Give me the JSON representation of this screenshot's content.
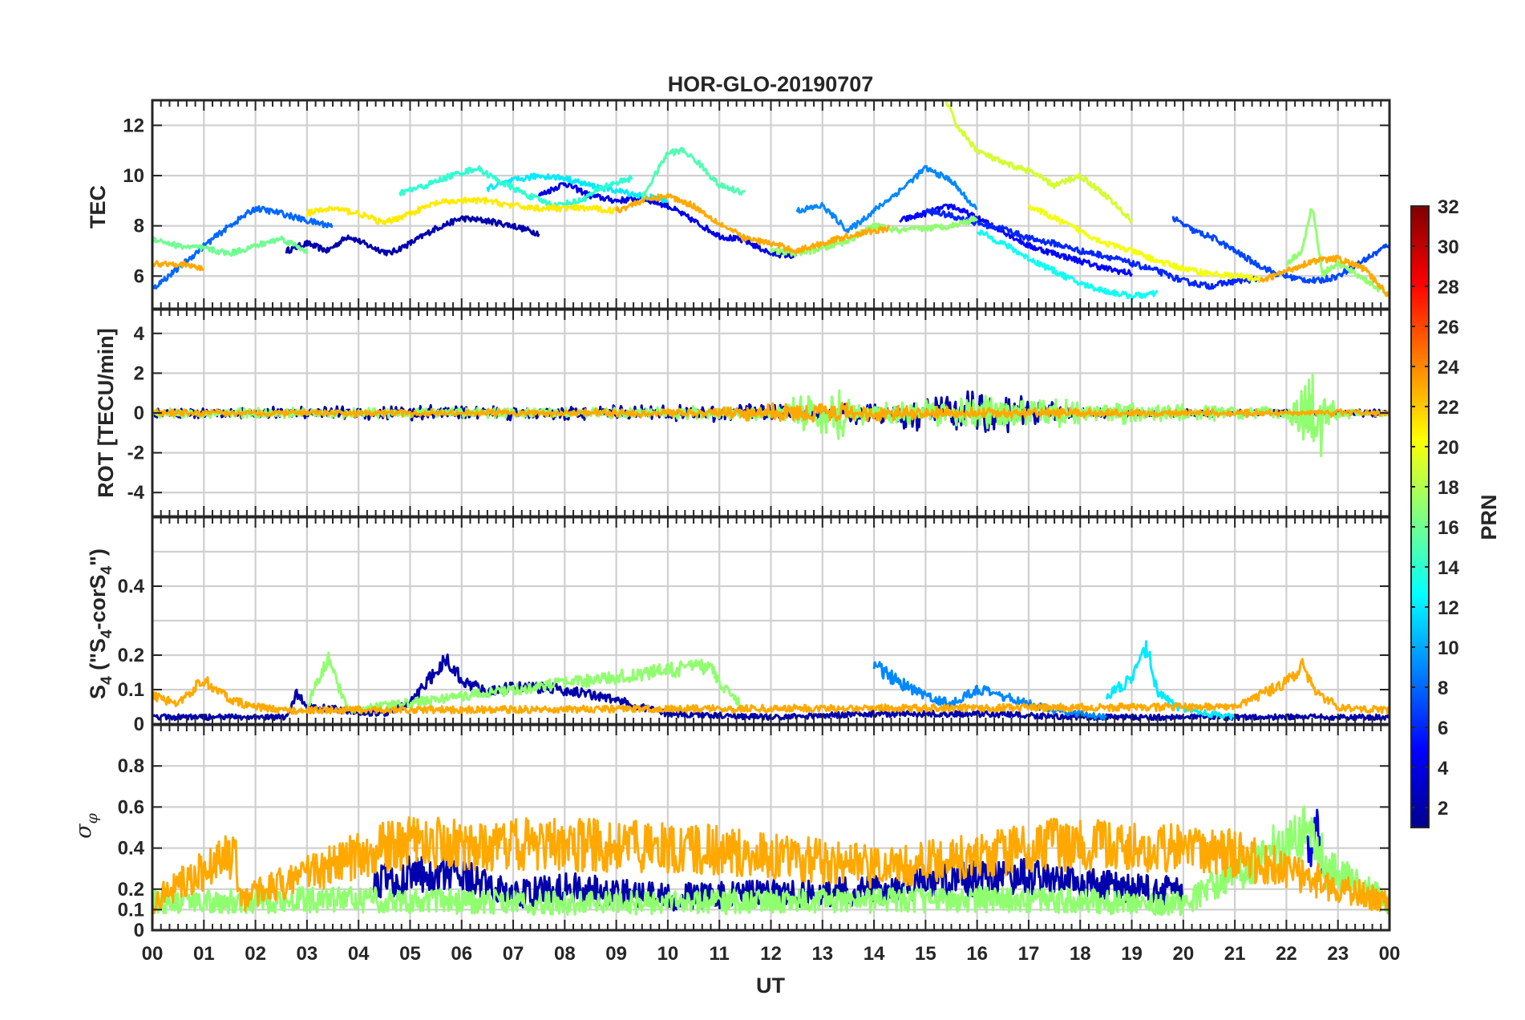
{
  "chart_data": {
    "type": "line",
    "title": "HOR-GLO-20190707",
    "xlabel": "UT",
    "x_tick_labels": [
      "00",
      "01",
      "02",
      "03",
      "04",
      "05",
      "06",
      "07",
      "08",
      "09",
      "10",
      "11",
      "12",
      "13",
      "14",
      "15",
      "16",
      "17",
      "18",
      "19",
      "20",
      "21",
      "22",
      "23",
      "00"
    ],
    "xlim": [
      0,
      24
    ],
    "colorbar": {
      "label": "PRN",
      "range": [
        1,
        32
      ],
      "tick_labels": [
        "2",
        "4",
        "6",
        "8",
        "10",
        "12",
        "14",
        "16",
        "18",
        "20",
        "22",
        "24",
        "26",
        "28",
        "30",
        "32"
      ],
      "colormap": [
        "#00008f",
        "#0000ff",
        "#0080ff",
        "#00ffff",
        "#80ff80",
        "#ffff00",
        "#ff8000",
        "#ff0000",
        "#800000"
      ]
    },
    "panels": [
      {
        "ylabel": "TEC",
        "ylim": [
          4.7,
          13
        ],
        "y_ticks": [
          "6",
          "8",
          "10",
          "12"
        ],
        "series": [
          {
            "prn": 2,
            "x": [
              2.6,
              3.0,
              3.4,
              3.8,
              4.2,
              4.6,
              5.0,
              5.5,
              6.0,
              6.5,
              7.0,
              7.5
            ],
            "y": [
              7.0,
              7.3,
              7.0,
              7.6,
              7.2,
              6.9,
              7.3,
              7.9,
              8.3,
              8.2,
              8.0,
              7.7
            ]
          },
          {
            "prn": 4,
            "x": [
              7.5,
              8.0,
              8.5,
              9.0,
              9.5,
              10.0,
              10.5,
              11.0,
              11.5,
              12.0,
              12.5
            ],
            "y": [
              9.2,
              9.7,
              9.2,
              9.0,
              9.1,
              8.8,
              8.2,
              7.6,
              7.4,
              6.9,
              6.8
            ]
          },
          {
            "prn": 5,
            "x": [
              14.5,
              15.0,
              15.5,
              16.0,
              16.5,
              17.0,
              17.5,
              18.0,
              18.5,
              19.0
            ],
            "y": [
              8.2,
              8.5,
              8.8,
              8.3,
              7.8,
              7.2,
              6.9,
              6.6,
              6.3,
              6.1
            ]
          },
          {
            "prn": 6,
            "x": [
              15.0,
              15.5,
              16.0,
              16.5,
              17.0,
              17.5,
              18.0,
              18.5,
              19.0,
              19.5,
              20.0,
              20.5,
              21.0,
              21.5
            ],
            "y": [
              8.6,
              8.4,
              8.1,
              7.9,
              7.5,
              7.3,
              7.0,
              6.8,
              6.5,
              6.2,
              5.8,
              5.6,
              5.8,
              5.9
            ]
          },
          {
            "prn": 7,
            "x": [
              19.8,
              20.2,
              20.6,
              21.0,
              21.4,
              21.8,
              22.2,
              22.6,
              23.0,
              23.4,
              23.8,
              24.0
            ],
            "y": [
              8.3,
              7.8,
              7.5,
              7.0,
              6.5,
              6.1,
              5.9,
              5.8,
              6.0,
              6.5,
              7.0,
              7.3
            ]
          },
          {
            "prn": 8,
            "x": [
              0,
              0.5,
              1.0,
              1.5,
              2.0,
              2.5,
              3.0,
              3.5
            ],
            "y": [
              5.5,
              6.3,
              7.2,
              8.0,
              8.7,
              8.5,
              8.2,
              8.0
            ]
          },
          {
            "prn": 9,
            "x": [
              12.5,
              13.0,
              13.5,
              14.0,
              14.5,
              15.0,
              15.5,
              16.0
            ],
            "y": [
              8.6,
              8.8,
              7.8,
              8.6,
              9.4,
              10.3,
              9.8,
              8.6
            ]
          },
          {
            "prn": 12,
            "x": [
              6.5,
              7.0,
              7.5,
              8.0,
              8.5,
              9.0,
              9.5,
              10.0
            ],
            "y": [
              9.5,
              9.8,
              10.0,
              9.9,
              9.6,
              9.4,
              9.2,
              9.0
            ]
          },
          {
            "prn": 13,
            "x": [
              16.0,
              16.5,
              17.0,
              17.5,
              18.0,
              18.5,
              19.0,
              19.5
            ],
            "y": [
              7.8,
              7.3,
              6.7,
              6.2,
              5.7,
              5.4,
              5.2,
              5.3
            ]
          },
          {
            "prn": 14,
            "x": [
              4.8,
              5.3,
              5.8,
              6.3,
              6.8,
              7.3,
              7.8,
              8.3,
              8.8,
              9.3
            ],
            "y": [
              9.3,
              9.6,
              10.0,
              10.3,
              9.7,
              9.2,
              8.8,
              9.0,
              9.6,
              9.9
            ]
          },
          {
            "prn": 15,
            "x": [
              9.5,
              9.8,
              10.0,
              10.3,
              10.6,
              11.0,
              11.5
            ],
            "y": [
              9.1,
              10.2,
              10.9,
              11.0,
              10.5,
              9.6,
              9.3
            ]
          },
          {
            "prn": 16,
            "x": [
              0,
              0.5,
              1.0,
              1.5,
              2.0,
              2.5,
              3.0
            ],
            "y": [
              7.5,
              7.2,
              7.1,
              6.9,
              7.2,
              7.5,
              7.0
            ]
          },
          {
            "prn": 17,
            "x": [
              12.0,
              12.5,
              13.0,
              13.5,
              14.0,
              14.5,
              15.0,
              15.5,
              16.0
            ],
            "y": [
              7.0,
              6.9,
              7.1,
              7.4,
              8.0,
              7.8,
              7.9,
              8.0,
              8.3
            ]
          },
          {
            "prn": 17,
            "x": [
              22.0,
              22.3,
              22.5,
              22.7,
              23.0,
              23.5,
              24.0
            ],
            "y": [
              6.5,
              7.0,
              8.8,
              6.1,
              6.5,
              5.9,
              5.2
            ]
          },
          {
            "prn": 19,
            "x": [
              15.4,
              15.6,
              15.8,
              16.0,
              16.5,
              17.0,
              17.5,
              18.0,
              18.5,
              19.0
            ],
            "y": [
              13.0,
              12.0,
              11.5,
              11.0,
              10.5,
              10.2,
              9.6,
              10.0,
              9.2,
              8.2
            ]
          },
          {
            "prn": 20,
            "x": [
              17.0,
              17.5,
              18.0,
              18.5,
              19.0,
              19.5,
              20.0,
              20.5,
              21.0,
              21.5
            ],
            "y": [
              8.8,
              8.3,
              7.8,
              7.3,
              7.0,
              6.6,
              6.3,
              6.1,
              6.0,
              5.9
            ]
          },
          {
            "prn": 21,
            "x": [
              3.0,
              3.5,
              4.0,
              4.5,
              5.0,
              5.5,
              6.0,
              6.5,
              7.0,
              7.5,
              8.0,
              8.5,
              9.0
            ],
            "y": [
              8.5,
              8.7,
              8.5,
              8.1,
              8.5,
              8.9,
              9.0,
              9.0,
              8.8,
              8.7,
              8.7,
              8.7,
              8.6
            ]
          },
          {
            "prn": 23,
            "x": [
              0,
              0.5,
              1.0
            ],
            "y": [
              6.5,
              6.5,
              6.3
            ]
          },
          {
            "prn": 23,
            "x": [
              9.0,
              9.5,
              10.0,
              10.5,
              11.0,
              11.5,
              12.0,
              12.5,
              13.0,
              13.5,
              14.0,
              14.3
            ],
            "y": [
              8.6,
              9.0,
              9.2,
              8.8,
              8.1,
              7.5,
              7.3,
              7.0,
              7.3,
              7.6,
              7.8,
              7.9
            ]
          },
          {
            "prn": 23,
            "x": [
              21.5,
              22.0,
              22.5,
              23.0,
              23.5,
              24.0
            ],
            "y": [
              5.8,
              6.2,
              6.6,
              6.7,
              6.3,
              5.2
            ]
          }
        ]
      },
      {
        "ylabel": "ROT [TECU/min]",
        "ylim": [
          -5.2,
          5.2
        ],
        "y_ticks": [
          "-4",
          "-2",
          "0",
          "2",
          "4"
        ],
        "series": [
          {
            "prn": 2,
            "x": [
              0,
              2,
              4,
              6,
              8,
              10,
              12,
              14,
              15.5,
              16,
              16.5,
              17,
              18,
              20,
              22,
              24
            ],
            "y_amp": [
              0.3,
              0.3,
              0.4,
              0.4,
              0.4,
              0.4,
              0.5,
              0.6,
              1.2,
              1.4,
              1.1,
              0.9,
              0.3,
              0.2,
              0.2,
              0.2
            ]
          },
          {
            "prn": 17,
            "x": [
              0,
              4,
              8,
              12,
              13.3,
              14,
              16,
              22,
              22.4,
              22.6,
              22.8,
              23,
              24
            ],
            "y_amp": [
              0.3,
              0.3,
              0.3,
              0.4,
              1.6,
              0.5,
              1.0,
              0.3,
              2.4,
              2.6,
              2.1,
              0.3,
              0.2
            ]
          },
          {
            "prn": 23,
            "x": [
              0,
              4,
              8,
              11,
              12,
              13,
              14,
              16,
              20,
              24
            ],
            "y_amp": [
              0.2,
              0.2,
              0.2,
              0.3,
              0.5,
              0.7,
              0.5,
              0.3,
              0.2,
              0.2
            ]
          }
        ]
      },
      {
        "ylabel": "S4 (\"S4-corS4\")",
        "ylim": [
          0,
          0.6
        ],
        "y_ticks": [
          "0",
          "0.1",
          "0.2",
          "0.4"
        ],
        "series": [
          {
            "prn": 2,
            "x": [
              0,
              2.6,
              2.8,
              3.0,
              4.5,
              5.0,
              5.7,
              6.0,
              6.5,
              7.0,
              8.0,
              9.0,
              10.0,
              12.0,
              14.0,
              16.0,
              18.0,
              20.0,
              24.0
            ],
            "y": [
              0.02,
              0.02,
              0.09,
              0.05,
              0.03,
              0.06,
              0.19,
              0.13,
              0.09,
              0.11,
              0.1,
              0.07,
              0.03,
              0.02,
              0.03,
              0.03,
              0.02,
              0.02,
              0.02
            ]
          },
          {
            "prn": 9,
            "x": [
              14.0,
              14.5,
              15.0,
              15.5,
              16.0,
              16.5,
              17.0,
              17.5,
              18.0,
              18.5
            ],
            "y": [
              0.17,
              0.12,
              0.08,
              0.06,
              0.1,
              0.08,
              0.06,
              0.04,
              0.03,
              0.02
            ]
          },
          {
            "prn": 12,
            "x": [
              18.5,
              19.0,
              19.3,
              19.5,
              20.0,
              21.0
            ],
            "y": [
              0.08,
              0.13,
              0.22,
              0.09,
              0.04,
              0.02
            ]
          },
          {
            "prn": 17,
            "x": [
              3.0,
              3.4,
              3.8,
              10.8,
              11.0,
              11.4
            ],
            "y": [
              0.05,
              0.19,
              0.04,
              0.17,
              0.12,
              0.06
            ]
          },
          {
            "prn": 23,
            "x": [
              0,
              0.5,
              1.0,
              1.5,
              2.0,
              2.5,
              21.0,
              22.0,
              22.3,
              22.6,
              23.0,
              24.0
            ],
            "y": [
              0.08,
              0.06,
              0.13,
              0.07,
              0.05,
              0.04,
              0.05,
              0.12,
              0.17,
              0.09,
              0.05,
              0.04
            ]
          }
        ]
      },
      {
        "ylabel": "σ φ",
        "ylim": [
          0,
          1
        ],
        "y_ticks": [
          "0",
          "0.1",
          "0.2",
          "0.4",
          "0.6",
          "0.8"
        ],
        "series": [
          {
            "prn": 2,
            "x": [
              4.3,
              5.0,
              6.0,
              7.0,
              8.0,
              9.0,
              10.0,
              14.5,
              15.0,
              16.0,
              17.0,
              18.0,
              19.0,
              20.0
            ],
            "y": [
              0.23,
              0.27,
              0.26,
              0.17,
              0.21,
              0.19,
              0.16,
              0.2,
              0.24,
              0.25,
              0.26,
              0.23,
              0.2,
              0.19
            ]
          },
          {
            "prn": 4,
            "x": [
              22.4,
              22.6,
              22.7
            ],
            "y": [
              0.36,
              0.46,
              0.25
            ]
          },
          {
            "prn": 17,
            "x": [
              0,
              4,
              8,
              12,
              16,
              20,
              22.5,
              22.8,
              24
            ],
            "y": [
              0.14,
              0.15,
              0.13,
              0.14,
              0.15,
              0.13,
              0.5,
              0.3,
              0.13
            ]
          },
          {
            "prn": 23,
            "x": [
              0,
              1.6,
              1.7,
              4.6,
              7.6,
              10.6,
              14.3,
              17.4,
              20.9,
              24
            ],
            "y": [
              0.14,
              0.38,
              0.15,
              0.42,
              0.42,
              0.4,
              0.3,
              0.42,
              0.38,
              0.13
            ]
          }
        ]
      }
    ]
  }
}
